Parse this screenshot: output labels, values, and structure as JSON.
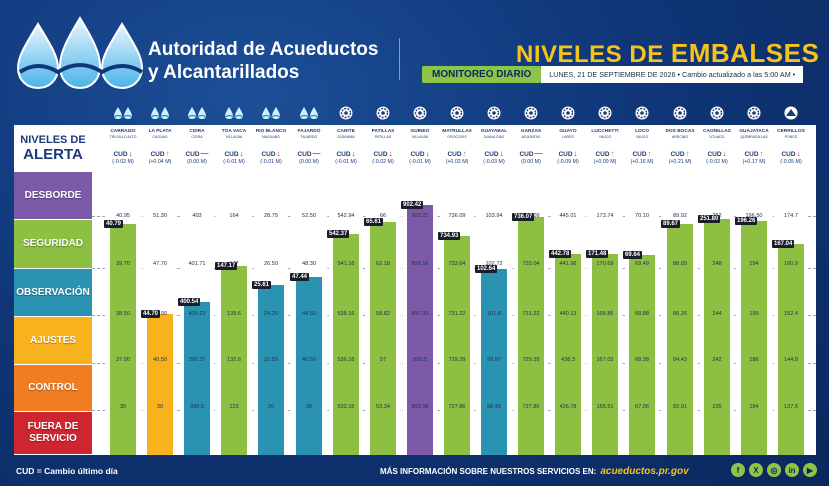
{
  "header": {
    "org_line1": "Autoridad de Acueductos",
    "org_line2": "y Alcantarillados",
    "title_part1": "NIVELES DE ",
    "title_part2": "EMBALSES",
    "monitor_label": "MONITOREO DIARIO",
    "date_text": "LUNES, 21 DE SEPTIEMBRE DE 2026 • Cambio actualizado a las 5:00 AM •"
  },
  "levels_header": {
    "line1": "NIVELES DE",
    "line2": "ALERTA"
  },
  "levels": [
    {
      "key": "desborde",
      "label": "DESBORDE",
      "color": "#7c5aa8"
    },
    {
      "key": "seguridad",
      "label": "SEGURIDAD",
      "color": "#8dbf43"
    },
    {
      "key": "observacion",
      "label": "OBSERVACIÓN",
      "color": "#2a93b1"
    },
    {
      "key": "ajustes",
      "label": "AJUSTES",
      "color": "#f8b21b"
    },
    {
      "key": "control",
      "label": "CONTROL",
      "color": "#f07d22"
    },
    {
      "key": "fuera",
      "label": "FUERA DE SERVICIO",
      "color": "#cf2531"
    }
  ],
  "reservoirs": [
    {
      "name": "CARRAIZO",
      "sub": "TRUJILLO ALTO",
      "cud_dir": "down",
      "change": "(-0.02 M)",
      "current": "40.79",
      "level": "seguridad",
      "thresholds": [
        "40.95",
        "39.70",
        "38.50",
        "37.00",
        "30"
      ],
      "icon": "wave-icon"
    },
    {
      "name": "LA PLATA",
      "sub": "CAGUAS",
      "cud_dir": "up",
      "change": "(+0.04 M)",
      "current": "44.70",
      "level": "ajustes",
      "thresholds": [
        "51.30",
        "47.70",
        "44.90",
        "40.50",
        "30"
      ],
      "icon": "wave-icon"
    },
    {
      "name": "CIDRA",
      "sub": "CIDRA",
      "cud_dir": "flat",
      "change": "(0.00 M)",
      "current": "400.54",
      "level": "observacion",
      "thresholds": [
        "403",
        "401.71",
        "400.23",
        "396.37",
        "395.5"
      ],
      "icon": "wave-icon"
    },
    {
      "name": "TOA VACA",
      "sub": "VILLALBA",
      "cud_dir": "down",
      "change": "(-0.01 M)",
      "current": "147.17",
      "level": "seguridad",
      "thresholds": [
        "164",
        "147",
        "139.6",
        "132.6",
        "123"
      ],
      "icon": "wave-icon"
    },
    {
      "name": "RÍO BLANCO",
      "sub": "NAGUABO",
      "cud_dir": "down",
      "change": "(-0.01 M)",
      "current": "25.61",
      "level": "observacion",
      "thresholds": [
        "28.75",
        "26.50",
        "24.25",
        "22.50",
        "20"
      ],
      "icon": "wave-icon"
    },
    {
      "name": "FAJARDO",
      "sub": "FAJARDO",
      "cud_dir": "flat",
      "change": "(0.00 M)",
      "current": "47.44",
      "level": "observacion",
      "thresholds": [
        "52.50",
        "48.30",
        "44.50",
        "40.50",
        "36"
      ],
      "icon": "wave-icon"
    },
    {
      "name": "CARITE",
      "sub": "GUAYAMA",
      "cud_dir": "down",
      "change": "(-0.01 M)",
      "current": "542.37",
      "level": "seguridad",
      "thresholds": [
        "542.94",
        "541.16",
        "538.16",
        "536.16",
        "532.16"
      ],
      "icon": "gear-icon"
    },
    {
      "name": "PATILLAS",
      "sub": "PATILLAS",
      "cud_dir": "down",
      "change": "(-0.02 M)",
      "current": "65.61",
      "level": "seguridad",
      "thresholds": [
        "66",
        "62.18",
        "58.82",
        "57",
        "53.34"
      ],
      "icon": "gear-icon"
    },
    {
      "name": "GUINEO",
      "sub": "VILLALBA",
      "cud_dir": "down",
      "change": "(-0.01 M)",
      "current": "902.42",
      "level": "desborde",
      "thresholds": [
        "902.21",
        "899.16",
        "897.33",
        "895.5",
        "893.98"
      ],
      "icon": "gear-icon"
    },
    {
      "name": "MATRULLAS",
      "sub": "OROCOVIS",
      "cud_dir": "up",
      "change": "(+0.02 M)",
      "current": "734.93",
      "level": "seguridad",
      "thresholds": [
        "736.09",
        "733.04",
        "731.22",
        "729.39",
        "727.86"
      ],
      "icon": "gear-icon"
    },
    {
      "name": "GUAYABAL",
      "sub": "JUANA DÍAZ",
      "cud_dir": "down",
      "change": "(-0.03 M)",
      "current": "102.64",
      "level": "observacion",
      "thresholds": [
        "103.94",
        "102.72",
        "101.8",
        "99.97",
        "98.45"
      ],
      "icon": "gear-icon"
    },
    {
      "name": "GARZAS",
      "sub": "ADJUNTAS",
      "cud_dir": "flat",
      "change": "(0.00 M)",
      "current": "736.07",
      "level": "seguridad",
      "thresholds": [
        "736.09",
        "733.04",
        "731.22",
        "729.39",
        "727.86"
      ],
      "icon": "gear-icon"
    },
    {
      "name": "GUAYO",
      "sub": "LARES",
      "cud_dir": "down",
      "change": "(-0.09 M)",
      "current": "442.78",
      "level": "seguridad",
      "thresholds": [
        "445.01",
        "441.96",
        "440.13",
        "438.3",
        "436.78"
      ],
      "icon": "gear-icon"
    },
    {
      "name": "LUCCHETTI",
      "sub": "YAUCO",
      "cud_dir": "up",
      "change": "(+0.09 M)",
      "current": "171.48",
      "level": "seguridad",
      "thresholds": [
        "173.74",
        "170.69",
        "168.86",
        "167.03",
        "165.51"
      ],
      "icon": "gear-icon"
    },
    {
      "name": "LOCO",
      "sub": "YAUCO",
      "cud_dir": "up",
      "change": "(+0.16 M)",
      "current": "69.64",
      "level": "seguridad",
      "thresholds": [
        "70.10",
        "69.49",
        "68.88",
        "68.38",
        "67.06"
      ],
      "icon": "gear-icon"
    },
    {
      "name": "DOS BOCAS",
      "sub": "ARECIBO",
      "cud_dir": "up",
      "change": "(+0.21 M)",
      "current": "89.67",
      "level": "seguridad",
      "thresholds": [
        "89.92",
        "88.09",
        "86.26",
        "84.43",
        "82.91"
      ],
      "icon": "gear-icon"
    },
    {
      "name": "CAONILLAS",
      "sub": "UTUADO",
      "cud_dir": "down",
      "change": "(-0.02 M)",
      "current": "251.80",
      "level": "seguridad",
      "thresholds": [
        "252",
        "248",
        "244",
        "242",
        "235"
      ],
      "icon": "gear-icon"
    },
    {
      "name": "GUAJATACA",
      "sub": "QUEBRADILLAS",
      "cud_dir": "up",
      "change": "(+0.17 M)",
      "current": "196.26",
      "level": "seguridad",
      "thresholds": [
        "196.50",
        "194",
        "190",
        "186",
        "184"
      ],
      "icon": "gear-icon"
    },
    {
      "name": "CERRILLOS",
      "sub": "PONCE",
      "cud_dir": "down",
      "change": "(-0.05 M)",
      "current": "167.04",
      "level": "seguridad",
      "thresholds": [
        "174.7",
        "160.9",
        "152.4",
        "144.8",
        "137.5"
      ],
      "icon": "dam-icon"
    }
  ],
  "cud_label": "CUD",
  "footer": {
    "cud_legend": "CUD = Cambio último día",
    "more_info": "MÁS INFORMACIÓN SOBRE NUESTROS SERVICIOS EN:",
    "url": "acueductos.pr.gov",
    "socials": [
      {
        "name": "facebook-icon",
        "glyph": "f"
      },
      {
        "name": "x-icon",
        "glyph": "X"
      },
      {
        "name": "instagram-icon",
        "glyph": "◎"
      },
      {
        "name": "linkedin-icon",
        "glyph": "in"
      },
      {
        "name": "youtube-icon",
        "glyph": "▶"
      }
    ]
  },
  "colors": {
    "up": "#5fae2e",
    "down": "#d6222f",
    "flat": "#1c7fc1",
    "brand_yellow": "#f6c31b",
    "navy": "#0a285c"
  }
}
